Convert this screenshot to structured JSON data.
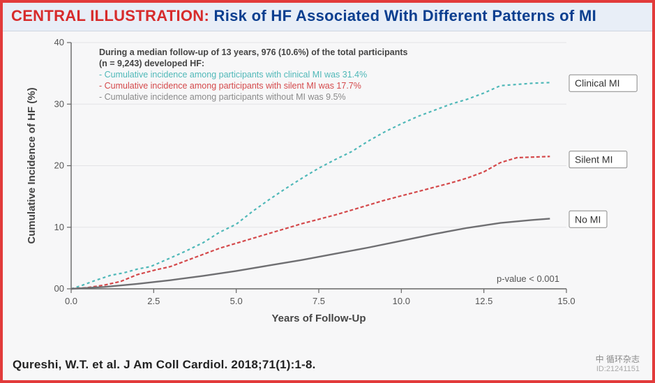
{
  "header": {
    "prefix": "CENTRAL ILLUSTRATION:",
    "title": "Risk of HF Associated With Different Patterns of MI"
  },
  "chart": {
    "type": "line",
    "xlabel": "Years of Follow-Up",
    "ylabel": "Cumulative Incidence of HF (%)",
    "xlim": [
      0,
      15
    ],
    "ylim": [
      0,
      40
    ],
    "xticks": [
      0.0,
      2.5,
      5.0,
      7.5,
      10.0,
      12.5,
      15.0
    ],
    "yticks": [
      0,
      10,
      20,
      30,
      40
    ],
    "xtick_labels": [
      "0.0",
      "2.5",
      "5.0",
      "7.5",
      "10.0",
      "12.5",
      "15.0"
    ],
    "ytick_labels": [
      "00",
      "10",
      "20",
      "30",
      "40"
    ],
    "background_color": "#f7f7f8",
    "grid_color": "#e3e3e6",
    "axis_color": "#666666",
    "tick_fontsize": 13,
    "label_fontsize": 15,
    "pvalue": "p-value < 0.001",
    "annotation": {
      "head": "During a median follow-up of 13 years, 976 (10.6%) of the total participants (n = 9,243) developed HF:",
      "lines": [
        {
          "text": "- Cumulative incidence among participants with clinical MI was 31.4%",
          "color": "#4fb8b8"
        },
        {
          "text": "- Cumulative incidence among participants with silent MI was 17.7%",
          "color": "#d4494b"
        },
        {
          "text": "- Cumulative incidence among participants without MI was 9.5%",
          "color": "#8a8a8a"
        }
      ],
      "fontsize": 12.5
    },
    "series": [
      {
        "name": "Clinical MI",
        "color": "#4fb8b8",
        "dash": "4 4",
        "width": 2.2,
        "label_y": 33.4,
        "points": [
          [
            0,
            0
          ],
          [
            0.3,
            0.5
          ],
          [
            0.7,
            1.3
          ],
          [
            1.2,
            2.2
          ],
          [
            1.6,
            2.6
          ],
          [
            2.0,
            3.2
          ],
          [
            2.4,
            3.6
          ],
          [
            3.0,
            5.0
          ],
          [
            3.5,
            6.2
          ],
          [
            4.0,
            7.5
          ],
          [
            4.5,
            9.2
          ],
          [
            5.0,
            10.5
          ],
          [
            5.5,
            12.6
          ],
          [
            6.0,
            14.5
          ],
          [
            6.5,
            16.3
          ],
          [
            7.0,
            18.0
          ],
          [
            7.5,
            19.6
          ],
          [
            8.0,
            21.0
          ],
          [
            8.5,
            22.3
          ],
          [
            9.0,
            24.0
          ],
          [
            9.5,
            25.5
          ],
          [
            10.0,
            26.8
          ],
          [
            10.5,
            28.0
          ],
          [
            11.0,
            29.0
          ],
          [
            11.5,
            30.0
          ],
          [
            12.0,
            30.8
          ],
          [
            12.5,
            31.8
          ],
          [
            13.0,
            33.0
          ],
          [
            13.5,
            33.2
          ],
          [
            14.0,
            33.4
          ],
          [
            14.5,
            33.5
          ]
        ]
      },
      {
        "name": "Silent MI",
        "color": "#d4494b",
        "dash": "5 3",
        "width": 2.2,
        "label_y": 21.0,
        "points": [
          [
            0,
            0
          ],
          [
            0.5,
            0.2
          ],
          [
            1.0,
            0.6
          ],
          [
            1.5,
            1.2
          ],
          [
            2.0,
            2.3
          ],
          [
            2.5,
            3.0
          ],
          [
            3.0,
            3.6
          ],
          [
            3.5,
            4.6
          ],
          [
            4.0,
            5.6
          ],
          [
            4.5,
            6.6
          ],
          [
            5.0,
            7.4
          ],
          [
            5.5,
            8.2
          ],
          [
            6.0,
            9.0
          ],
          [
            6.5,
            9.8
          ],
          [
            7.0,
            10.6
          ],
          [
            7.5,
            11.3
          ],
          [
            8.0,
            12.0
          ],
          [
            8.5,
            12.8
          ],
          [
            9.0,
            13.6
          ],
          [
            9.5,
            14.4
          ],
          [
            10.0,
            15.1
          ],
          [
            10.5,
            15.8
          ],
          [
            11.0,
            16.5
          ],
          [
            11.5,
            17.2
          ],
          [
            12.0,
            18.0
          ],
          [
            12.5,
            19.0
          ],
          [
            13.0,
            20.5
          ],
          [
            13.5,
            21.3
          ],
          [
            14.0,
            21.4
          ],
          [
            14.5,
            21.5
          ]
        ]
      },
      {
        "name": "No MI",
        "color": "#6f6f72",
        "dash": "",
        "width": 2.4,
        "label_y": 11.3,
        "points": [
          [
            0,
            0
          ],
          [
            1.0,
            0.3
          ],
          [
            2.0,
            0.8
          ],
          [
            3.0,
            1.4
          ],
          [
            4.0,
            2.1
          ],
          [
            5.0,
            2.9
          ],
          [
            6.0,
            3.8
          ],
          [
            7.0,
            4.7
          ],
          [
            8.0,
            5.7
          ],
          [
            9.0,
            6.7
          ],
          [
            10.0,
            7.8
          ],
          [
            11.0,
            8.9
          ],
          [
            12.0,
            9.9
          ],
          [
            13.0,
            10.7
          ],
          [
            14.0,
            11.2
          ],
          [
            14.5,
            11.4
          ]
        ]
      }
    ]
  },
  "citation": "Qureshi, W.T. et al. J Am Coll Cardiol. 2018;71(1):1-8.",
  "watermark": {
    "text": "中 循环杂志",
    "id": "ID:21241151"
  }
}
